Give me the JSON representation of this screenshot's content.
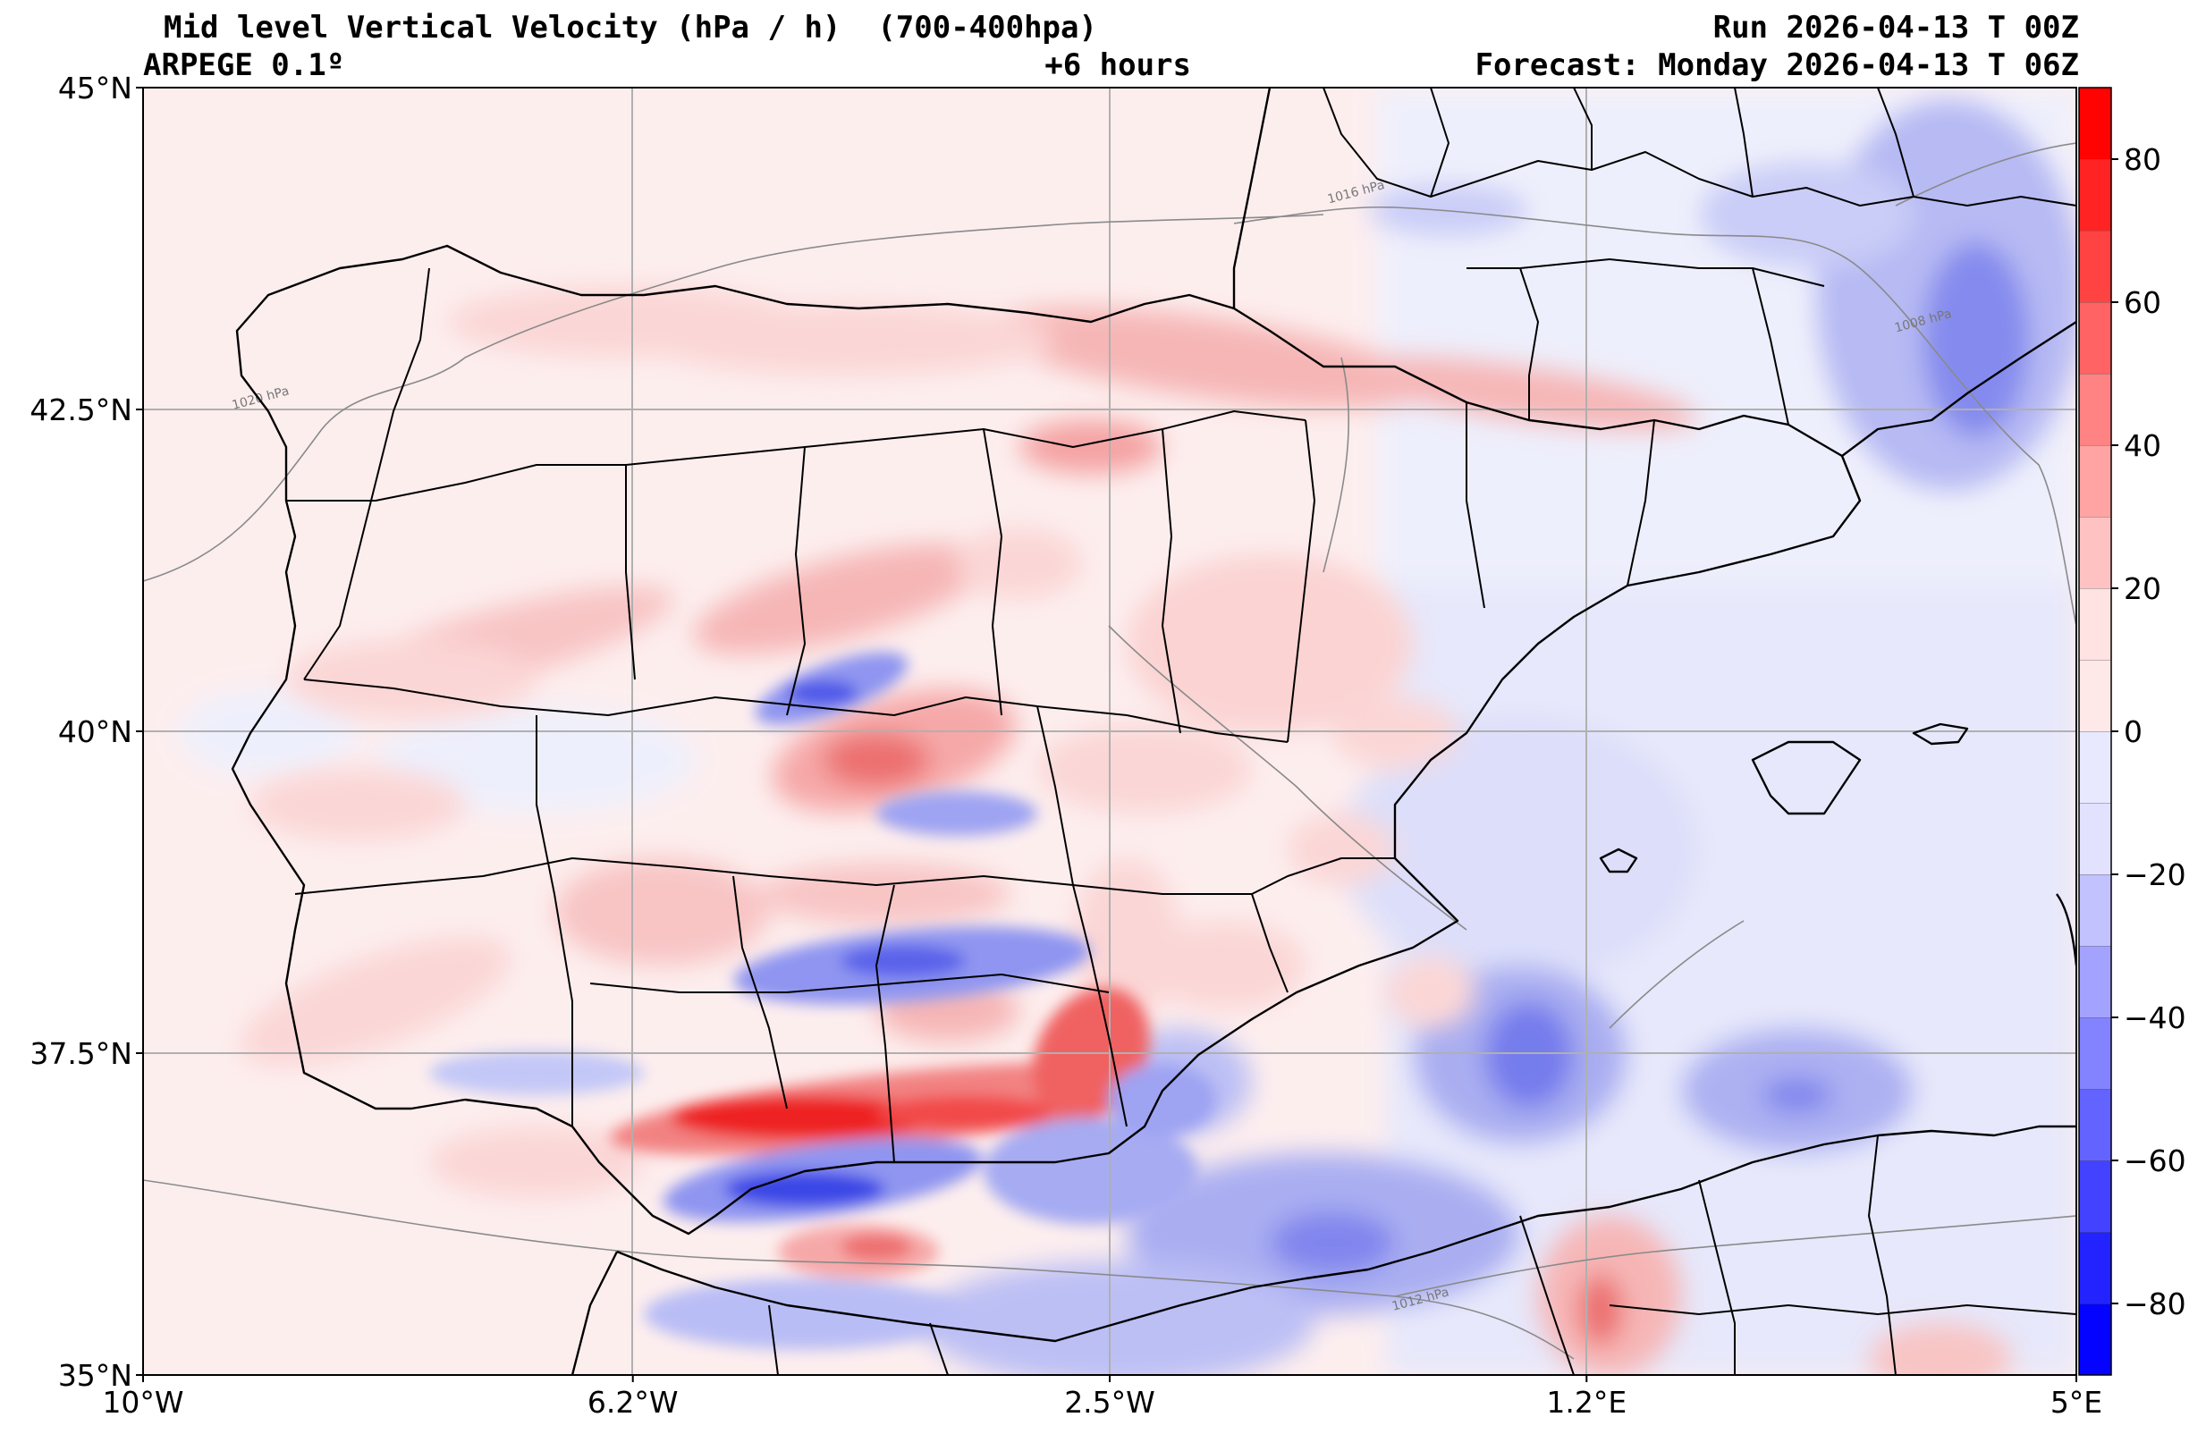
{
  "header": {
    "title": "Mid level Vertical Velocity (hPa / h)  (700-400hpa)",
    "model": "ARPEGE 0.1º",
    "lead": "+6 hours",
    "run": "Run 2026-04-13 T 00Z",
    "forecast": "Forecast: Monday 2026-04-13 T 06Z"
  },
  "map": {
    "lon_range": [
      -10,
      5
    ],
    "lat_range": [
      35,
      45
    ],
    "lat_ticks": [
      {
        "value": 45,
        "label": "45°N"
      },
      {
        "value": 42.5,
        "label": "42.5°N"
      },
      {
        "value": 40,
        "label": "40°N"
      },
      {
        "value": 37.5,
        "label": "37.5°N"
      },
      {
        "value": 35,
        "label": "35°N"
      }
    ],
    "lon_ticks": [
      {
        "value": -10,
        "label": "10°W"
      },
      {
        "value": -6.2,
        "label": "6.2°W"
      },
      {
        "value": -2.5,
        "label": "2.5°W"
      },
      {
        "value": 1.2,
        "label": "1.2°E"
      },
      {
        "value": 5,
        "label": "5°E"
      }
    ],
    "isobar_labels": [
      {
        "text": "1020 hPa",
        "lon": -9.3,
        "lat": 42.5
      },
      {
        "text": "1016 hPa",
        "lon": -0.8,
        "lat": 44.1
      },
      {
        "text": "1008 hPa",
        "lon": 3.6,
        "lat": 43.1
      },
      {
        "text": "1012 hPa",
        "lon": -0.3,
        "lat": 35.5
      }
    ],
    "colors": {
      "rise": "#ff0000",
      "sink": "#0000ff",
      "neutral": "#ffffff",
      "coast": "#000000",
      "isobar": "#888888",
      "grid": "#b0b0b0"
    }
  },
  "colorbar": {
    "range": [
      -90,
      90
    ],
    "step": 10,
    "ticks": [
      {
        "value": 80,
        "label": "80"
      },
      {
        "value": 60,
        "label": "60"
      },
      {
        "value": 40,
        "label": "40"
      },
      {
        "value": 20,
        "label": "20"
      },
      {
        "value": 0,
        "label": "0"
      },
      {
        "value": -20,
        "label": "−20"
      },
      {
        "value": -40,
        "label": "−40"
      },
      {
        "value": -60,
        "label": "−60"
      },
      {
        "value": -80,
        "label": "−80"
      }
    ]
  }
}
